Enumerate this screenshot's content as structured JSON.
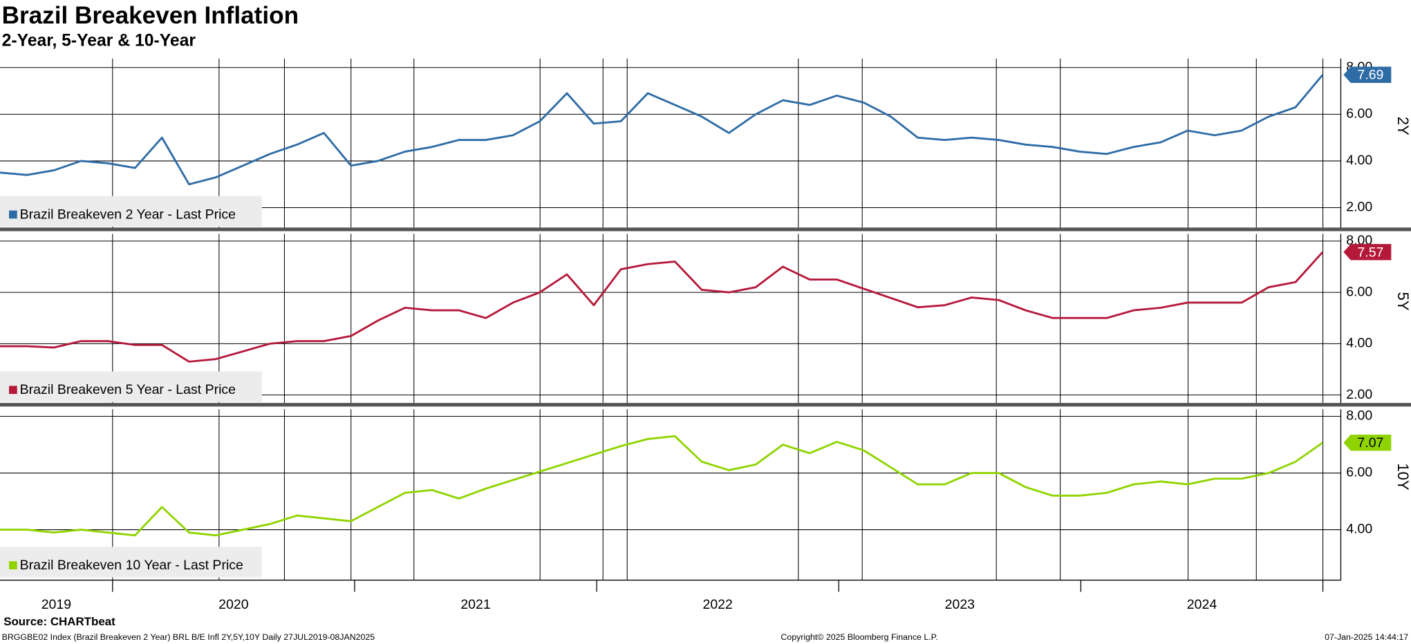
{
  "header": {
    "title": "Brazil Breakeven Inflation",
    "subtitle": "2-Year, 5-Year & 10-Year"
  },
  "x_axis": {
    "xticks": [
      2020,
      2021,
      2022,
      2023,
      2024,
      2025
    ],
    "labels": [
      "2019",
      "2020",
      "2021",
      "2022",
      "2023",
      "2024"
    ],
    "grid": [
      2020,
      2020.44,
      2020.71,
      2020.985,
      2021.245,
      2021.766,
      2022.026,
      2022.126,
      2022.833,
      2023.097,
      2023.651,
      2023.915,
      2024.443,
      2024.725,
      2025
    ]
  },
  "chart_data": [
    {
      "type": "line",
      "panel_label": "2Y",
      "xlim": [
        2019.535,
        2025.074
      ],
      "ylim": [
        1.07,
        8.39
      ],
      "yticks": [
        {
          "value": 2,
          "label": "2.00"
        },
        {
          "value": 4,
          "label": "4.00"
        },
        {
          "value": 6,
          "label": "6.00"
        },
        {
          "value": 8,
          "label": "8.00"
        }
      ],
      "x": [
        2019.535,
        2019.647,
        2019.758,
        2019.87,
        2019.981,
        2020.093,
        2020.204,
        2020.316,
        2020.427,
        2020.539,
        2020.65,
        2020.762,
        2020.873,
        2020.985,
        2021.096,
        2021.208,
        2021.319,
        2021.431,
        2021.542,
        2021.654,
        2021.765,
        2021.877,
        2021.988,
        2022.1,
        2022.211,
        2022.323,
        2022.434,
        2022.546,
        2022.657,
        2022.769,
        2022.88,
        2022.992,
        2023.103,
        2023.215,
        2023.326,
        2023.438,
        2023.549,
        2023.661,
        2023.772,
        2023.884,
        2023.995,
        2024.107,
        2024.218,
        2024.33,
        2024.441,
        2024.553,
        2024.664,
        2024.776,
        2024.887,
        2024.999
      ],
      "series": [
        {
          "name": "Brazil Breakeven 2 Year - Last Price",
          "color": "#2e6ca6",
          "last_price": 7.69,
          "values": [
            3.5,
            3.4,
            3.6,
            4.0,
            3.9,
            3.7,
            5.0,
            3.0,
            3.3,
            3.8,
            4.3,
            4.7,
            5.2,
            3.8,
            4.0,
            4.4,
            4.6,
            4.9,
            4.9,
            5.1,
            5.7,
            6.9,
            5.6,
            5.7,
            6.9,
            6.4,
            5.9,
            5.2,
            6.0,
            6.6,
            6.4,
            6.8,
            6.5,
            5.9,
            5.0,
            4.9,
            5.0,
            4.9,
            4.7,
            4.6,
            4.4,
            4.3,
            4.6,
            4.8,
            5.3,
            5.1,
            5.3,
            5.9,
            6.3,
            7.69
          ]
        }
      ]
    },
    {
      "type": "line",
      "panel_label": "5Y",
      "xlim": [
        2019.535,
        2025.074
      ],
      "ylim": [
        1.62,
        8.28
      ],
      "yticks": [
        {
          "value": 2,
          "label": "2.00"
        },
        {
          "value": 4,
          "label": "4.00"
        },
        {
          "value": 6,
          "label": "6.00"
        },
        {
          "value": 8,
          "label": "8.00"
        }
      ],
      "x": [
        2019.535,
        2019.647,
        2019.758,
        2019.87,
        2019.981,
        2020.093,
        2020.204,
        2020.316,
        2020.427,
        2020.539,
        2020.65,
        2020.762,
        2020.873,
        2020.985,
        2021.096,
        2021.208,
        2021.319,
        2021.431,
        2021.542,
        2021.654,
        2021.765,
        2021.877,
        2021.988,
        2022.1,
        2022.211,
        2022.323,
        2022.434,
        2022.546,
        2022.657,
        2022.769,
        2022.88,
        2022.992,
        2023.103,
        2023.215,
        2023.326,
        2023.438,
        2023.549,
        2023.661,
        2023.772,
        2023.884,
        2023.995,
        2024.107,
        2024.218,
        2024.33,
        2024.441,
        2024.553,
        2024.664,
        2024.776,
        2024.887,
        2024.999
      ],
      "series": [
        {
          "name": "Brazil Breakeven 5 Year - Last Price",
          "color": "#b5193a",
          "last_price": 7.57,
          "values": [
            3.9,
            3.9,
            3.85,
            4.1,
            4.1,
            3.95,
            3.95,
            3.3,
            3.4,
            3.7,
            4.0,
            4.1,
            4.1,
            4.3,
            4.9,
            5.4,
            5.3,
            5.3,
            5.0,
            5.6,
            6.0,
            6.7,
            5.5,
            6.9,
            7.1,
            7.2,
            6.1,
            6.0,
            6.2,
            7.0,
            6.5,
            6.5,
            6.14,
            5.78,
            5.42,
            5.5,
            5.8,
            5.7,
            5.3,
            5.0,
            5.0,
            5.0,
            5.3,
            5.4,
            5.6,
            5.6,
            5.6,
            6.2,
            6.4,
            7.57
          ]
        }
      ]
    },
    {
      "type": "line",
      "panel_label": "10Y",
      "xlim": [
        2019.535,
        2025.074
      ],
      "ylim": [
        2.22,
        8.25
      ],
      "yticks": [
        {
          "value": 4,
          "label": "4.00"
        },
        {
          "value": 6,
          "label": "6.00"
        },
        {
          "value": 8,
          "label": "8.00"
        }
      ],
      "x": [
        2019.535,
        2019.647,
        2019.758,
        2019.87,
        2019.981,
        2020.093,
        2020.204,
        2020.316,
        2020.427,
        2020.539,
        2020.65,
        2020.762,
        2020.873,
        2020.985,
        2021.096,
        2021.208,
        2021.319,
        2021.431,
        2021.542,
        2021.654,
        2021.765,
        2021.877,
        2021.988,
        2022.1,
        2022.211,
        2022.323,
        2022.434,
        2022.546,
        2022.657,
        2022.769,
        2022.88,
        2022.992,
        2023.103,
        2023.215,
        2023.326,
        2023.438,
        2023.549,
        2023.661,
        2023.772,
        2023.884,
        2023.995,
        2024.107,
        2024.218,
        2024.33,
        2024.441,
        2024.553,
        2024.664,
        2024.776,
        2024.887,
        2024.999
      ],
      "series": [
        {
          "name": "Brazil Breakeven 10 Year - Last Price",
          "color": "#8fd400",
          "last_price": 7.07,
          "values": [
            4.0,
            4.0,
            3.9,
            4.0,
            3.9,
            3.8,
            4.8,
            3.9,
            3.8,
            4.0,
            4.2,
            4.5,
            4.4,
            4.3,
            4.8,
            5.3,
            5.4,
            5.1,
            5.45,
            5.75,
            6.05,
            6.35,
            6.65,
            6.95,
            7.2,
            7.3,
            6.4,
            6.1,
            6.3,
            7.0,
            6.7,
            7.1,
            6.8,
            6.2,
            5.6,
            5.6,
            6.0,
            6.0,
            5.5,
            5.2,
            5.2,
            5.3,
            5.6,
            5.7,
            5.6,
            5.8,
            5.8,
            6.0,
            6.4,
            7.07
          ]
        }
      ]
    }
  ],
  "footer": {
    "source": "Source: CHARTbeat",
    "index_info": "BRGGBE02 Index (Brazil Breakeven 2 Year) BRL B/E Infl 2Y,5Y,10Y  Daily 27JUL2019-08JAN2025",
    "copyright": "Copyright© 2025 Bloomberg Finance L.P.",
    "timestamp": "07-Jan-2025 14:44:17"
  }
}
